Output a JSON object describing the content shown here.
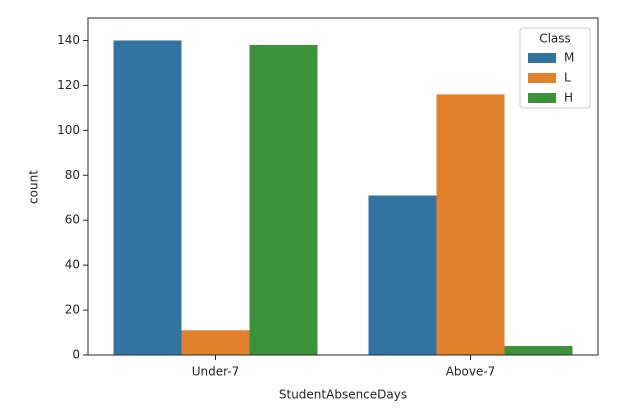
{
  "chart_data": {
    "type": "bar",
    "x_label": "StudentAbsenceDays",
    "y_label": "count",
    "categories": [
      "Under-7",
      "Above-7"
    ],
    "series": [
      {
        "name": "M",
        "color": "#3274a1",
        "values": [
          140,
          71
        ]
      },
      {
        "name": "L",
        "color": "#e1812c",
        "values": [
          11,
          116
        ]
      },
      {
        "name": "H",
        "color": "#3a923a",
        "values": [
          138,
          4
        ]
      }
    ],
    "legend_title": "Class",
    "legend_position": "upper right",
    "ylim": [
      0,
      150
    ],
    "yticks": [
      0,
      20,
      40,
      60,
      80,
      100,
      120,
      140
    ]
  }
}
